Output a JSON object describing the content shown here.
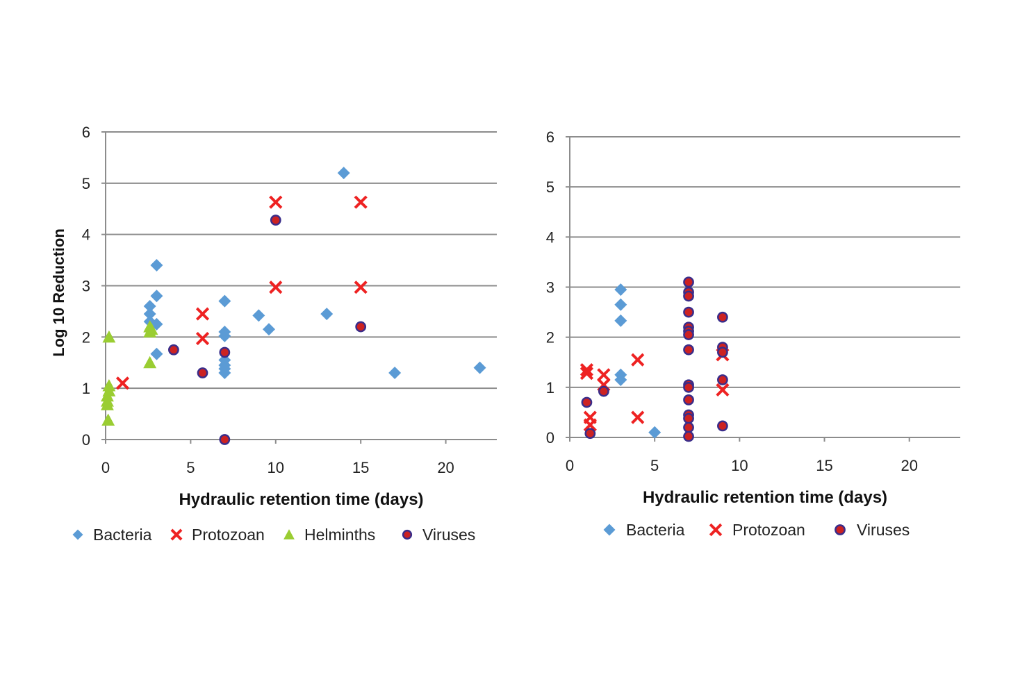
{
  "chart_data": [
    {
      "type": "scatter",
      "title": "",
      "xlabel": "Hydraulic  retention time (days)",
      "ylabel": "Log 10 Reduction",
      "xlim": [
        0,
        23
      ],
      "ylim": [
        0,
        6
      ],
      "xticks": [
        0,
        5,
        10,
        15,
        20
      ],
      "yticks": [
        0,
        1,
        2,
        3,
        4,
        5,
        6
      ],
      "grid": true,
      "legend_position": "bottom",
      "series": [
        {
          "name": "Bacteria",
          "marker": "diamond",
          "color": "#5b9bd5",
          "legend_label": "Bacteria",
          "points": [
            [
              2.6,
              2.6
            ],
            [
              2.6,
              2.45
            ],
            [
              2.6,
              2.3
            ],
            [
              3,
              3.4
            ],
            [
              3,
              2.8
            ],
            [
              3,
              2.25
            ],
            [
              3,
              1.67
            ],
            [
              7,
              2.7
            ],
            [
              7,
              2.1
            ],
            [
              7,
              2.02
            ],
            [
              7,
              1.55
            ],
            [
              7,
              1.45
            ],
            [
              7,
              1.38
            ],
            [
              7,
              1.3
            ],
            [
              9,
              2.42
            ],
            [
              9.6,
              2.15
            ],
            [
              13,
              2.45
            ],
            [
              14,
              5.2
            ],
            [
              17,
              1.3
            ],
            [
              22,
              1.4
            ]
          ]
        },
        {
          "name": "Protozoan",
          "marker": "x",
          "color": "#ee2222",
          "legend_label": "Protozoan",
          "points": [
            [
              1,
              1.1
            ],
            [
              5.7,
              2.45
            ],
            [
              5.7,
              1.97
            ],
            [
              10,
              4.63
            ],
            [
              10,
              2.97
            ],
            [
              15,
              4.63
            ],
            [
              15,
              2.97
            ]
          ]
        },
        {
          "name": "Helminths",
          "marker": "triangle",
          "color": "#9acd32",
          "legend_label": "Helminths",
          "points": [
            [
              0.2,
              2.0
            ],
            [
              0.2,
              1.05
            ],
            [
              0.2,
              0.95
            ],
            [
              0.1,
              0.85
            ],
            [
              0.1,
              0.75
            ],
            [
              0.1,
              0.68
            ],
            [
              0.15,
              0.38
            ],
            [
              2.6,
              2.2
            ],
            [
              2.6,
              2.1
            ],
            [
              2.7,
              2.15
            ],
            [
              2.6,
              1.5
            ]
          ]
        },
        {
          "name": "Viruses",
          "marker": "circle",
          "color": "#cc2222",
          "edge_color": "#3a2d8a",
          "legend_label": "Viruses",
          "points": [
            [
              4,
              1.75
            ],
            [
              5.7,
              1.3
            ],
            [
              7,
              1.7
            ],
            [
              7,
              0
            ],
            [
              10,
              4.28
            ],
            [
              15,
              2.2
            ]
          ]
        }
      ]
    },
    {
      "type": "scatter",
      "title": "",
      "xlabel": "Hydraulic  retention time (days)",
      "ylabel": "",
      "xlim": [
        0,
        23
      ],
      "ylim": [
        0,
        6
      ],
      "xticks": [
        0,
        5,
        10,
        15,
        20
      ],
      "yticks": [
        0,
        1,
        2,
        3,
        4,
        5,
        6
      ],
      "grid": true,
      "legend_position": "bottom",
      "series": [
        {
          "name": "Bacteria",
          "marker": "diamond",
          "color": "#5b9bd5",
          "legend_label": "Bacteria",
          "points": [
            [
              3,
              2.95
            ],
            [
              3,
              2.65
            ],
            [
              3,
              2.33
            ],
            [
              3,
              1.25
            ],
            [
              3,
              1.15
            ],
            [
              5,
              0.1
            ]
          ]
        },
        {
          "name": "Protozoan",
          "marker": "x",
          "color": "#ee2222",
          "legend_label": "Protozoan",
          "points": [
            [
              1,
              1.35
            ],
            [
              1,
              1.28
            ],
            [
              1.2,
              0.4
            ],
            [
              1.2,
              0.25
            ],
            [
              2,
              1.25
            ],
            [
              2,
              1.05
            ],
            [
              4,
              1.55
            ],
            [
              4,
              0.4
            ],
            [
              9,
              1.65
            ],
            [
              9,
              0.95
            ]
          ]
        },
        {
          "name": "Viruses",
          "marker": "circle",
          "color": "#cc2222",
          "edge_color": "#3a2d8a",
          "legend_label": "Viruses",
          "points": [
            [
              1,
              0.7
            ],
            [
              1.2,
              0.08
            ],
            [
              2,
              0.92
            ],
            [
              7,
              3.1
            ],
            [
              7,
              2.9
            ],
            [
              7,
              2.82
            ],
            [
              7,
              2.5
            ],
            [
              7,
              2.2
            ],
            [
              7,
              2.12
            ],
            [
              7,
              2.05
            ],
            [
              7,
              1.75
            ],
            [
              7,
              1.05
            ],
            [
              7,
              1.0
            ],
            [
              7,
              0.75
            ],
            [
              7,
              0.45
            ],
            [
              7,
              0.38
            ],
            [
              7,
              0.2
            ],
            [
              7,
              0.02
            ],
            [
              9,
              2.4
            ],
            [
              9,
              1.8
            ],
            [
              9,
              1.7
            ],
            [
              9,
              1.15
            ],
            [
              9,
              0.23
            ]
          ]
        }
      ]
    }
  ]
}
